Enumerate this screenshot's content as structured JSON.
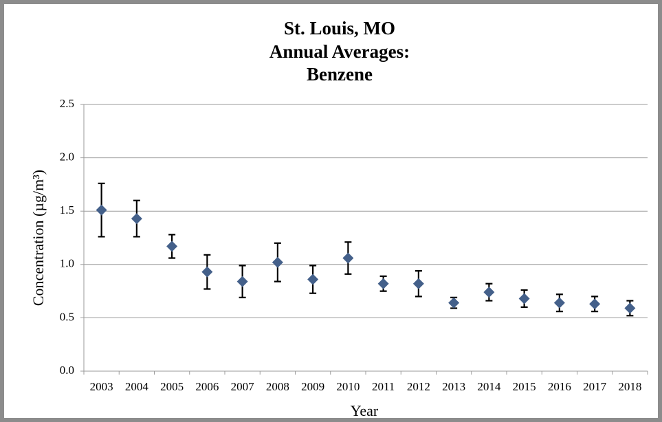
{
  "chart_data": {
    "type": "errorbar",
    "title": [
      "St. Louis, MO",
      "Annual Averages:",
      "Benzene"
    ],
    "xlabel": "Year",
    "ylabel": "Concentration (µg/m³)",
    "categories": [
      "2003",
      "2004",
      "2005",
      "2006",
      "2007",
      "2008",
      "2009",
      "2010",
      "2011",
      "2012",
      "2013",
      "2014",
      "2015",
      "2016",
      "2017",
      "2018"
    ],
    "values": [
      1.51,
      1.43,
      1.17,
      0.93,
      0.84,
      1.02,
      0.86,
      1.06,
      0.82,
      0.82,
      0.64,
      0.74,
      0.68,
      0.64,
      0.63,
      0.59
    ],
    "errors": [
      0.25,
      0.17,
      0.11,
      0.16,
      0.15,
      0.18,
      0.13,
      0.15,
      0.07,
      0.12,
      0.05,
      0.08,
      0.08,
      0.08,
      0.07,
      0.07
    ],
    "color": "#44608a",
    "error_color": "#000000",
    "ylim": [
      0,
      2.5
    ],
    "yticks": [
      {
        "value": 0,
        "label": "0.0"
      },
      0.5,
      {
        "value": 1,
        "label": "1.0"
      },
      1.5,
      {
        "value": 2,
        "label": "2.0"
      },
      2.5
    ],
    "grid": true
  }
}
